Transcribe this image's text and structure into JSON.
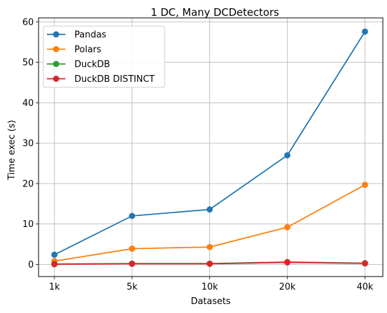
{
  "chart_data": {
    "type": "line",
    "title": "1 DC, Many DCDetectors",
    "xlabel": "Datasets",
    "ylabel": "Time exec (s)",
    "categories": [
      "1k",
      "5k",
      "10k",
      "20k",
      "40k"
    ],
    "ylim": [
      -3,
      61
    ],
    "yticks": [
      0,
      10,
      20,
      30,
      40,
      50,
      60
    ],
    "grid": true,
    "legend_position": "top-left",
    "series": [
      {
        "name": "Pandas",
        "color": "#1f77b4",
        "values": [
          2.4,
          12.0,
          13.6,
          27.0,
          57.6
        ]
      },
      {
        "name": "Polars",
        "color": "#ff7f0e",
        "values": [
          0.8,
          3.9,
          4.3,
          9.2,
          19.7
        ]
      },
      {
        "name": "DuckDB",
        "color": "#2ca02c",
        "values": [
          0.1,
          0.2,
          0.2,
          0.6,
          0.3
        ]
      },
      {
        "name": "DuckDB DISTINCT",
        "color": "#d62728",
        "values": [
          0.05,
          0.15,
          0.15,
          0.5,
          0.25
        ]
      }
    ]
  }
}
